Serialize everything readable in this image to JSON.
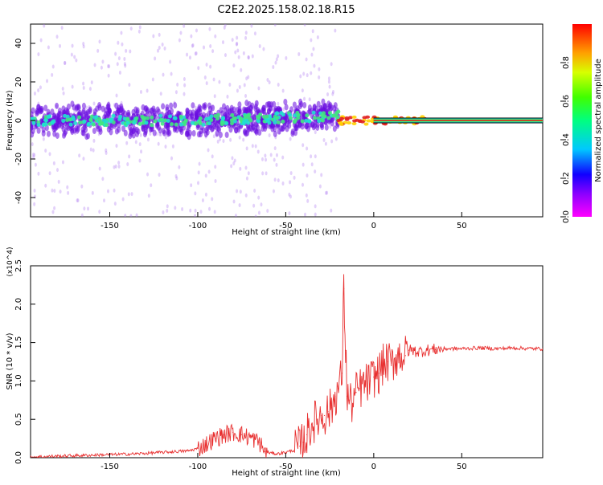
{
  "title": "C2E2.2025.158.02.18.R15",
  "colors": {
    "snr_line": "#e83030",
    "signal_strong": "#e02020",
    "signal_mid": "#20e0d0",
    "noise": "#6a0de0",
    "noise_faint": "#b07cf0"
  },
  "chart_data": [
    {
      "type": "heatmap",
      "xlabel": "Height of straight line (km)",
      "ylabel": "Frequency (Hz)",
      "xlim": [
        -195,
        96
      ],
      "ylim": [
        -50,
        50
      ],
      "xticks": [
        -150,
        -100,
        -50,
        0,
        50
      ],
      "yticks": [
        -40,
        -20,
        0,
        20,
        40
      ],
      "colorbar": {
        "label": "Normalized spectral amplitude",
        "range": [
          0.0,
          1.0
        ],
        "ticks": [
          "0.0",
          "0.2",
          "0.4",
          "0.6",
          "0.8"
        ],
        "tick_values": [
          0.0,
          0.2,
          0.4,
          0.6,
          0.8
        ],
        "colormap": "rainbow (magenta-blue-cyan-green-yellow-red)"
      },
      "features": {
        "noise_band_x": [
          -195,
          -20
        ],
        "noise_band_half_width_hz": [
          -8,
          8
        ],
        "scattered_outliers_hz": [
          -50,
          50
        ],
        "transition_x": [
          -20,
          30
        ],
        "stable_tone_x": [
          0,
          96
        ],
        "stable_tone_frequency_hz": 0,
        "stable_tone_amplitude": 0.95
      },
      "grid": false
    },
    {
      "type": "line",
      "xlabel": "Height of straight line (km)",
      "ylabel": "SNR (10 * v/v)",
      "y_multiplier": "(x10^4)",
      "xlim": [
        -195,
        96
      ],
      "ylim": [
        0.0,
        2.5
      ],
      "xticks": [
        -150,
        -100,
        -50,
        0,
        50
      ],
      "yticks": [
        0.0,
        0.5,
        1.0,
        1.5,
        2.0,
        2.5
      ],
      "ytick_labels": [
        "0.0",
        "0.5",
        "1.0",
        "1.5",
        "2.0",
        "2.5"
      ],
      "series": [
        {
          "name": "",
          "x": [
            -195,
            -180,
            -165,
            -150,
            -135,
            -120,
            -105,
            -100,
            -95,
            -90,
            -85,
            -80,
            -75,
            -70,
            -65,
            -62,
            -58,
            -55,
            -50,
            -45,
            -42,
            -40,
            -38,
            -35,
            -32,
            -30,
            -28,
            -26,
            -24,
            -22,
            -20,
            -18,
            -17,
            -16,
            -15,
            -14,
            -12,
            -10,
            -8,
            -5,
            -2,
            0,
            3,
            5,
            8,
            10,
            12,
            15,
            18,
            20,
            22,
            25,
            30,
            35,
            40,
            50,
            60,
            70,
            80,
            90,
            96
          ],
          "values": [
            0.01,
            0.02,
            0.03,
            0.04,
            0.05,
            0.07,
            0.09,
            0.12,
            0.18,
            0.25,
            0.3,
            0.33,
            0.3,
            0.26,
            0.2,
            0.08,
            0.06,
            0.05,
            0.07,
            0.1,
            0.15,
            0.2,
            0.3,
            0.45,
            0.5,
            0.55,
            0.55,
            0.6,
            0.65,
            0.8,
            0.9,
            1.1,
            2.2,
            1.4,
            0.8,
            0.75,
            0.7,
            0.85,
            0.9,
            0.95,
            1.0,
            1.05,
            1.1,
            1.2,
            1.25,
            1.2,
            1.3,
            1.35,
            1.33,
            1.4,
            1.4,
            1.38,
            1.4,
            1.41,
            1.42,
            1.42,
            1.43,
            1.42,
            1.43,
            1.42,
            1.42
          ]
        }
      ],
      "grid": false
    }
  ]
}
